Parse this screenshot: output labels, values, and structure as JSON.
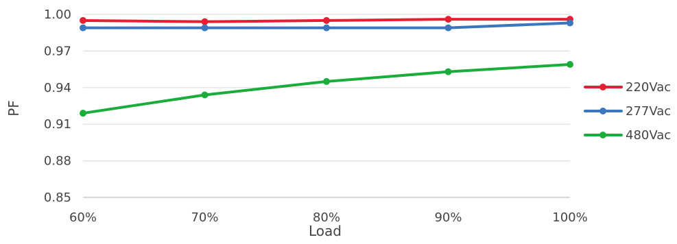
{
  "chart_data": {
    "type": "line",
    "title": "",
    "xlabel": "Load",
    "ylabel": "PF",
    "categories": [
      "60%",
      "70%",
      "80%",
      "90%",
      "100%"
    ],
    "ylim": [
      0.85,
      1.0
    ],
    "yticks": [
      "0.85",
      "0.88",
      "0.91",
      "0.94",
      "0.97",
      "1.00"
    ],
    "grid": true,
    "legend_position": "right",
    "series": [
      {
        "name": "220Vac",
        "color": "#e61e32",
        "values": [
          0.995,
          0.994,
          0.995,
          0.996,
          0.996
        ]
      },
      {
        "name": "277Vac",
        "color": "#3a77bd",
        "values": [
          0.989,
          0.989,
          0.989,
          0.989,
          0.993
        ]
      },
      {
        "name": "480Vac",
        "color": "#1aad3c",
        "values": [
          0.919,
          0.934,
          0.945,
          0.953,
          0.959
        ]
      }
    ]
  }
}
